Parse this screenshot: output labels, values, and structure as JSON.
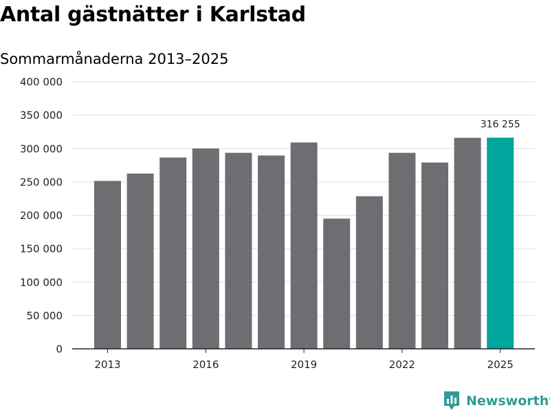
{
  "header": {
    "title": "Antal gästnätter i Karlstad",
    "subtitle": "Sommarmånaderna 2013–2025"
  },
  "chart_data": {
    "type": "bar",
    "categories": [
      "2013",
      "2014",
      "2015",
      "2016",
      "2017",
      "2018",
      "2019",
      "2020",
      "2021",
      "2022",
      "2023",
      "2024",
      "2025"
    ],
    "values": [
      251500,
      262500,
      286500,
      300000,
      293500,
      289500,
      309000,
      195000,
      228500,
      293500,
      279000,
      316000,
      316255
    ],
    "x_tick_labels": [
      "2013",
      "2016",
      "2019",
      "2022",
      "2025"
    ],
    "y_tick_labels": [
      "0",
      "50 000",
      "100 000",
      "150 000",
      "200 000",
      "250 000",
      "300 000",
      "350 000",
      "400 000"
    ],
    "ylim": [
      0,
      400000
    ],
    "xlabel": "",
    "ylabel": "",
    "grid": true,
    "legend": "none",
    "annotations": [
      {
        "category": "2025",
        "text": "316 255"
      }
    ],
    "colors": {
      "bar": "#6e6d72",
      "highlight": "#00a59c",
      "highlight_category": "2025",
      "grid": "#dddddd",
      "axis": "#222222"
    }
  },
  "brand": {
    "name": "Newsworthy",
    "icon": "newsworthy-logo-icon",
    "color": "#2f9c98"
  }
}
